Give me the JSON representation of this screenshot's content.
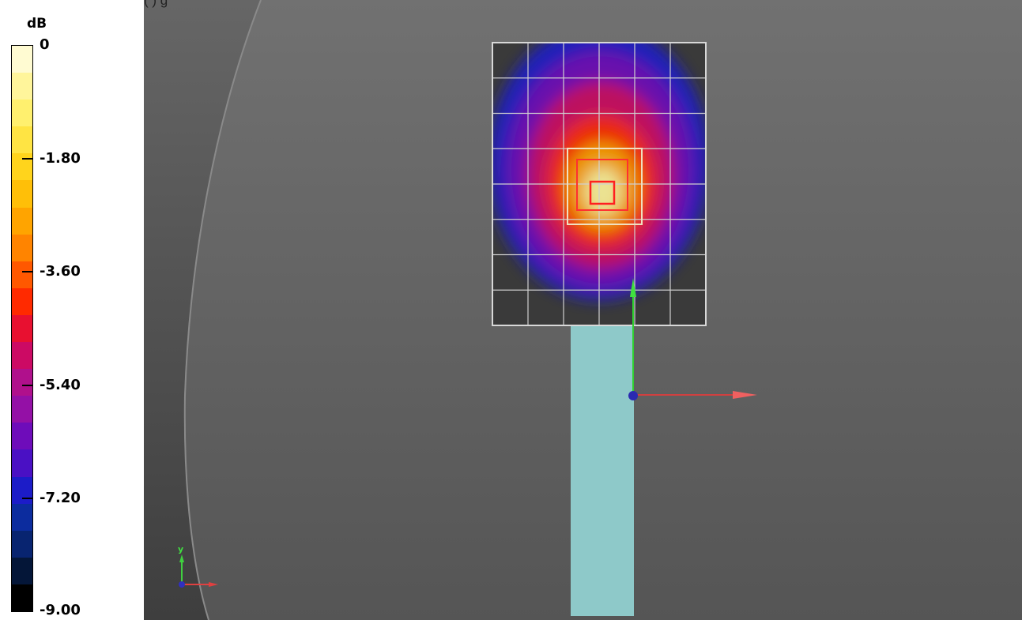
{
  "legend": {
    "unit": "dB",
    "ticks": [
      "0",
      "-1.80",
      "-3.60",
      "-5.40",
      "-7.20",
      "-9.00"
    ],
    "color_steps": [
      "#fffbd2",
      "#fff59b",
      "#fff06e",
      "#ffe443",
      "#ffd41c",
      "#ffbf08",
      "#ffa400",
      "#ff8400",
      "#ff5800",
      "#ff2a00",
      "#e81030",
      "#cc0a64",
      "#b0108c",
      "#9410a6",
      "#6e0cba",
      "#4a10c4",
      "#1c1cc8",
      "#0c2c9e",
      "#082470",
      "#041638",
      "#000000"
    ],
    "min_db": -9.0,
    "max_db": 0
  },
  "viewport": {
    "top_caption": "(                )                            g",
    "background_color": "#5a5a5a",
    "axes_gizmo": {
      "y_label": "y",
      "x_color": "#e04040",
      "y_color": "#40d040",
      "z_color": "#3030c0"
    },
    "object_color": "#8ec9c9",
    "scan_grid": {
      "rows": 8,
      "columns": 6
    },
    "field_map": {
      "contours_db": [
        -9.0,
        -7.2,
        -5.4,
        -3.6,
        -1.8,
        0
      ],
      "contour_colors": [
        "#1c1cc8",
        "#6e0cba",
        "#cc0a64",
        "#ff2a00",
        "#ffa400",
        "#fff59b"
      ]
    }
  }
}
